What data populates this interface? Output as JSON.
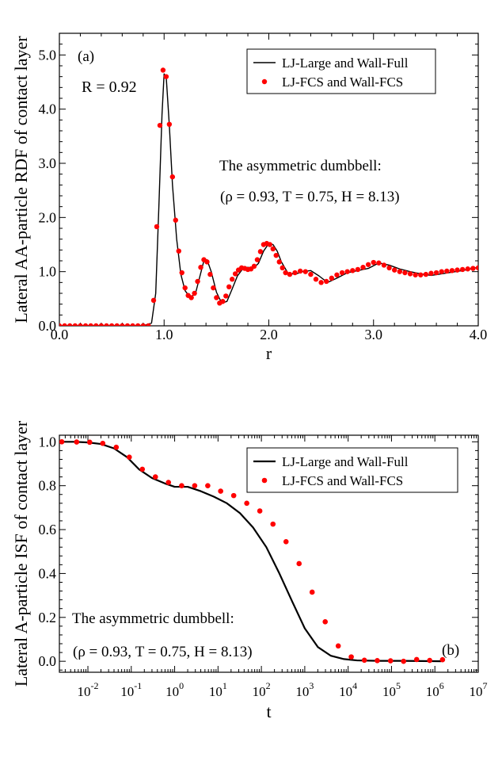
{
  "chart_data": [
    {
      "type": "line",
      "panel_label": "(a)",
      "xlabel": "r",
      "ylabel": "Lateral AA-particle RDF of contact layer",
      "xlim": [
        0.0,
        4.0
      ],
      "ylim": [
        0.0,
        5.4
      ],
      "xscale": "linear",
      "xticks": [
        0.0,
        1.0,
        2.0,
        3.0,
        4.0
      ],
      "xtick_labels": [
        "0.0",
        "1.0",
        "2.0",
        "3.0",
        "4.0"
      ],
      "yticks": [
        0.0,
        1.0,
        2.0,
        3.0,
        4.0,
        5.0
      ],
      "ytick_labels": [
        "0.0",
        "1.0",
        "2.0",
        "3.0",
        "4.0",
        "5.0"
      ],
      "annotations": [
        "R = 0.92",
        "The asymmetric dumbbell:",
        "(ρ = 0.93, T = 0.75, H = 8.13)"
      ],
      "legend": {
        "position": "top-right",
        "entries": [
          "LJ-Large and Wall-Full",
          "LJ-FCS and Wall-FCS"
        ]
      },
      "series": [
        {
          "name": "LJ-Large and Wall-Full",
          "style": "line",
          "color": "#000000",
          "x": [
            0.0,
            0.2,
            0.4,
            0.6,
            0.8,
            0.88,
            0.92,
            0.95,
            0.98,
            1.0,
            1.02,
            1.05,
            1.08,
            1.12,
            1.16,
            1.2,
            1.25,
            1.3,
            1.34,
            1.38,
            1.41,
            1.45,
            1.5,
            1.55,
            1.6,
            1.65,
            1.7,
            1.75,
            1.8,
            1.85,
            1.9,
            1.95,
            2.0,
            2.04,
            2.08,
            2.12,
            2.18,
            2.25,
            2.32,
            2.4,
            2.48,
            2.56,
            2.65,
            2.75,
            2.85,
            2.95,
            3.05,
            3.15,
            3.25,
            3.35,
            3.45,
            3.55,
            3.65,
            3.75,
            3.85,
            3.95,
            4.0
          ],
          "y": [
            0.0,
            0.0,
            0.0,
            0.0,
            0.0,
            0.05,
            0.6,
            2.2,
            3.9,
            4.65,
            4.6,
            3.7,
            2.6,
            1.6,
            0.95,
            0.65,
            0.52,
            0.6,
            0.9,
            1.2,
            1.22,
            1.0,
            0.62,
            0.42,
            0.45,
            0.68,
            0.92,
            1.05,
            1.08,
            1.06,
            1.15,
            1.38,
            1.52,
            1.5,
            1.38,
            1.18,
            0.98,
            0.95,
            1.0,
            1.02,
            0.92,
            0.8,
            0.88,
            0.98,
            1.02,
            1.06,
            1.16,
            1.12,
            1.05,
            1.0,
            0.96,
            0.93,
            0.96,
            0.99,
            1.02,
            1.06,
            1.08
          ]
        },
        {
          "name": "LJ-FCS and Wall-FCS",
          "style": "markers",
          "color": "#ff0000",
          "x": [
            0.0,
            0.05,
            0.1,
            0.15,
            0.2,
            0.25,
            0.3,
            0.35,
            0.4,
            0.45,
            0.5,
            0.55,
            0.6,
            0.65,
            0.7,
            0.75,
            0.8,
            0.85,
            0.9,
            0.93,
            0.96,
            0.99,
            1.02,
            1.05,
            1.08,
            1.11,
            1.14,
            1.17,
            1.2,
            1.23,
            1.26,
            1.29,
            1.32,
            1.35,
            1.38,
            1.41,
            1.44,
            1.47,
            1.5,
            1.53,
            1.56,
            1.59,
            1.62,
            1.65,
            1.68,
            1.71,
            1.74,
            1.77,
            1.8,
            1.83,
            1.86,
            1.89,
            1.92,
            1.95,
            1.98,
            2.01,
            2.04,
            2.07,
            2.1,
            2.13,
            2.16,
            2.2,
            2.25,
            2.3,
            2.35,
            2.4,
            2.45,
            2.5,
            2.55,
            2.6,
            2.65,
            2.7,
            2.75,
            2.8,
            2.85,
            2.9,
            2.95,
            3.0,
            3.05,
            3.1,
            3.15,
            3.2,
            3.25,
            3.3,
            3.35,
            3.4,
            3.45,
            3.5,
            3.55,
            3.6,
            3.65,
            3.7,
            3.75,
            3.8,
            3.85,
            3.9,
            3.95,
            4.0
          ],
          "y": [
            0.0,
            0.0,
            0.0,
            0.0,
            0.0,
            0.0,
            0.0,
            0.0,
            0.0,
            0.0,
            0.0,
            0.0,
            0.0,
            0.0,
            0.0,
            0.0,
            0.0,
            0.0,
            0.47,
            1.83,
            3.7,
            4.72,
            4.6,
            3.72,
            2.75,
            1.95,
            1.38,
            0.98,
            0.7,
            0.56,
            0.52,
            0.6,
            0.82,
            1.08,
            1.22,
            1.18,
            0.95,
            0.7,
            0.52,
            0.42,
            0.45,
            0.55,
            0.72,
            0.86,
            0.96,
            1.03,
            1.07,
            1.06,
            1.04,
            1.05,
            1.1,
            1.22,
            1.37,
            1.5,
            1.52,
            1.5,
            1.42,
            1.3,
            1.18,
            1.07,
            0.98,
            0.95,
            0.98,
            1.01,
            1.0,
            0.95,
            0.86,
            0.8,
            0.82,
            0.88,
            0.94,
            0.98,
            1.0,
            1.02,
            1.04,
            1.08,
            1.13,
            1.17,
            1.16,
            1.12,
            1.07,
            1.03,
            1.0,
            0.98,
            0.96,
            0.94,
            0.94,
            0.95,
            0.97,
            0.98,
            1.0,
            1.01,
            1.02,
            1.03,
            1.04,
            1.05,
            1.06,
            1.07
          ]
        }
      ]
    },
    {
      "type": "line",
      "panel_label": "(b)",
      "xlabel": "t",
      "ylabel": "Lateral A-particle ISF of contact layer",
      "xlim": [
        0.0022,
        10000000
      ],
      "ylim": [
        -0.05,
        1.03
      ],
      "xscale": "log",
      "xticks": [
        0.01,
        0.1,
        1,
        10,
        100,
        1000,
        10000,
        100000,
        1000000,
        10000000
      ],
      "xtick_labels": [
        [
          "10",
          "-2"
        ],
        [
          "10",
          "-1"
        ],
        [
          "10",
          "0"
        ],
        [
          "10",
          "1"
        ],
        [
          "10",
          "2"
        ],
        [
          "10",
          "3"
        ],
        [
          "10",
          "4"
        ],
        [
          "10",
          "5"
        ],
        [
          "10",
          "6"
        ],
        [
          "10",
          "7"
        ]
      ],
      "yticks": [
        0.0,
        0.2,
        0.4,
        0.6,
        0.8,
        1.0
      ],
      "ytick_labels": [
        "0.0",
        "0.2",
        "0.4",
        "0.6",
        "0.8",
        "1.0"
      ],
      "annotations": [
        "The asymmetric dumbbell:",
        "(ρ = 0.93, T = 0.75, H = 8.13)"
      ],
      "legend": {
        "position": "top-right",
        "entries": [
          "LJ-Large and Wall-Full",
          "LJ-FCS and Wall-FCS"
        ]
      },
      "series": [
        {
          "name": "LJ-Large and Wall-Full",
          "style": "line",
          "color": "#000000",
          "x": [
            0.0025,
            0.005,
            0.01,
            0.02,
            0.04,
            0.08,
            0.15,
            0.3,
            0.6,
            1.0,
            2.0,
            4.0,
            8.0,
            16.0,
            32.0,
            64.0,
            130.0,
            260.0,
            520.0,
            1000.0,
            2000.0,
            4000.0,
            8000.0,
            16000.0,
            50000.0,
            150000.0,
            500000.0,
            1400000.0
          ],
          "y": [
            1.0,
            1.0,
            0.997,
            0.99,
            0.97,
            0.93,
            0.875,
            0.835,
            0.81,
            0.795,
            0.795,
            0.775,
            0.75,
            0.72,
            0.675,
            0.61,
            0.52,
            0.4,
            0.27,
            0.15,
            0.065,
            0.025,
            0.01,
            0.004,
            0.002,
            0.002,
            0.001,
            0.0
          ]
        },
        {
          "name": "LJ-FCS and Wall-FCS",
          "style": "markers",
          "color": "#ff0000",
          "x": [
            0.0025,
            0.0055,
            0.011,
            0.022,
            0.045,
            0.09,
            0.18,
            0.36,
            0.72,
            1.45,
            2.9,
            5.8,
            11.5,
            23.0,
            46.0,
            92.0,
            185.0,
            370.0,
            740.0,
            1480.0,
            2960.0,
            5920.0,
            11800.0,
            23700.0,
            47000.0,
            95000.0,
            190000.0,
            380000.0,
            760000.0,
            1500000.0
          ],
          "y": [
            1.0,
            0.999,
            0.998,
            0.993,
            0.975,
            0.93,
            0.875,
            0.84,
            0.815,
            0.8,
            0.8,
            0.8,
            0.775,
            0.755,
            0.72,
            0.685,
            0.625,
            0.545,
            0.445,
            0.315,
            0.18,
            0.07,
            0.02,
            0.005,
            0.003,
            0.002,
            0.0,
            0.008,
            0.004,
            0.007
          ]
        }
      ]
    }
  ]
}
